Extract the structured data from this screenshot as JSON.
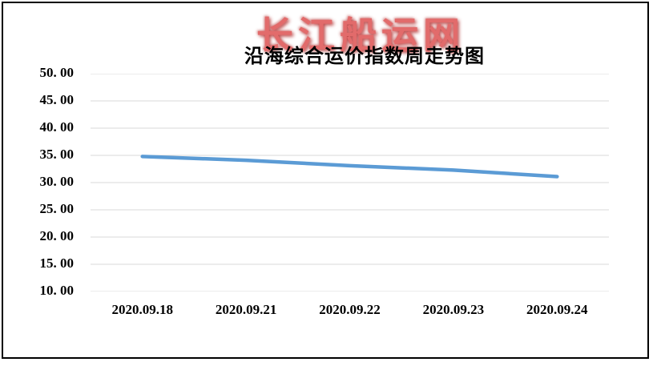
{
  "watermark": {
    "text": "长江船运网",
    "color": "#E26B6B"
  },
  "frame": {
    "border_color": "#000000"
  },
  "chart_data": {
    "type": "line",
    "title": "沿海综合运价指数周走势图",
    "categories": [
      "2020.09.18",
      "2020.09.21",
      "2020.09.22",
      "2020.09.23",
      "2020.09.24"
    ],
    "values": [
      34.8,
      34.1,
      33.1,
      32.3,
      31.1
    ],
    "xlabel": "",
    "ylabel": "",
    "ylim": [
      10,
      50
    ],
    "y_ticks": [
      50,
      45,
      40,
      35,
      30,
      25,
      20,
      15,
      10
    ],
    "y_tick_labels": [
      "50. 00",
      "45. 00",
      "40. 00",
      "35. 00",
      "30. 00",
      "25. 00",
      "20. 00",
      "15. 00",
      "10. 00"
    ],
    "grid": "horizontal",
    "gridline_color": "#D9D9D9",
    "line_color": "#5B9BD5",
    "legend": "none"
  }
}
